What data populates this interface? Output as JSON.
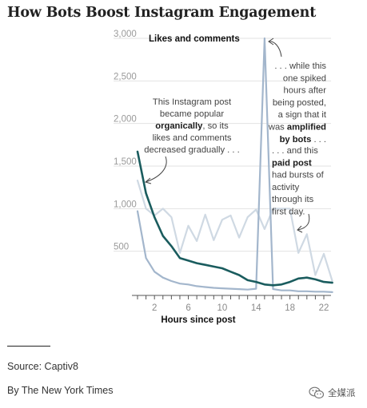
{
  "title": "How Bots Boost Instagram Engagement",
  "source": "Source: Captiv8",
  "credit": "By The New York Times",
  "watermark": {
    "icon": "wechat-icon",
    "text": "全媒派"
  },
  "colors": {
    "organic": "#1a5c5e",
    "amplified": "#a3b6cc",
    "paid": "#cfd9e3",
    "grid": "#e2e2e2",
    "axis": "#555555"
  },
  "annotations": {
    "organic": [
      [
        {
          "t": "This Instagram post"
        }
      ],
      [
        {
          "t": "became popular"
        }
      ],
      [
        {
          "t": "organically",
          "b": true
        },
        {
          "t": ", so its"
        }
      ],
      [
        {
          "t": "likes and comments"
        }
      ],
      [
        {
          "t": "decreased gradually . . ."
        }
      ]
    ],
    "amplified": [
      [
        {
          "t": ". . . while this"
        }
      ],
      [
        {
          "t": "one spiked"
        }
      ],
      [
        {
          "t": "hours after"
        }
      ],
      [
        {
          "t": "being posted,"
        }
      ],
      [
        {
          "t": "a sign that it"
        }
      ],
      [
        {
          "t": "was "
        },
        {
          "t": "amplified",
          "b": true
        }
      ],
      [
        {
          "t": "by bots",
          "b": true
        },
        {
          "t": " . . ."
        }
      ]
    ],
    "paid": [
      [
        {
          "t": ". . . and this"
        }
      ],
      [
        {
          "t": "paid post",
          "b": true
        }
      ],
      [
        {
          "t": "had bursts of"
        }
      ],
      [
        {
          "t": "activity"
        }
      ],
      [
        {
          "t": "through its"
        }
      ],
      [
        {
          "t": "first day."
        }
      ]
    ]
  },
  "chart_data": {
    "type": "line",
    "title": "Likes and comments",
    "xlabel": "Hours since post",
    "ylabel": "",
    "xlim": [
      0,
      23
    ],
    "ylim": [
      0,
      3000
    ],
    "xticks": [
      2,
      6,
      10,
      14,
      18,
      22
    ],
    "yticks": [
      500,
      1000,
      1500,
      2000,
      2500,
      3000
    ],
    "ytick_labels": [
      "500",
      "1,000",
      "1,500",
      "2,000",
      "2,500",
      "3,000"
    ],
    "grid": true,
    "series": [
      {
        "name": "organic",
        "color": "#1a5c5e",
        "x": [
          0,
          1,
          2,
          3,
          4,
          5,
          6,
          7,
          8,
          9,
          10,
          11,
          12,
          13,
          14,
          15,
          16,
          17,
          18,
          19,
          20,
          21,
          22,
          23
        ],
        "y": [
          1670,
          1180,
          900,
          680,
          560,
          420,
          390,
          360,
          340,
          320,
          300,
          260,
          220,
          160,
          140,
          110,
          100,
          110,
          140,
          180,
          190,
          170,
          140,
          130
        ]
      },
      {
        "name": "amplified by bots",
        "color": "#a3b6cc",
        "x": [
          0,
          1,
          2,
          3,
          4,
          5,
          6,
          7,
          8,
          9,
          10,
          11,
          12,
          13,
          14,
          15,
          16,
          17,
          18,
          19,
          20,
          21,
          22,
          23
        ],
        "y": [
          970,
          420,
          260,
          190,
          150,
          120,
          110,
          90,
          80,
          70,
          65,
          60,
          55,
          50,
          60,
          3000,
          55,
          40,
          40,
          30,
          30,
          25,
          25,
          20
        ]
      },
      {
        "name": "paid post",
        "color": "#cfd9e3",
        "x": [
          0,
          1,
          2,
          3,
          4,
          5,
          6,
          7,
          8,
          9,
          10,
          11,
          12,
          13,
          14,
          15,
          16,
          17,
          18,
          19,
          20,
          21,
          22,
          23
        ],
        "y": [
          1330,
          1000,
          920,
          1000,
          900,
          480,
          800,
          620,
          930,
          630,
          870,
          920,
          660,
          900,
          990,
          760,
          1000,
          1000,
          1000,
          480,
          700,
          220,
          470,
          150
        ]
      }
    ]
  }
}
